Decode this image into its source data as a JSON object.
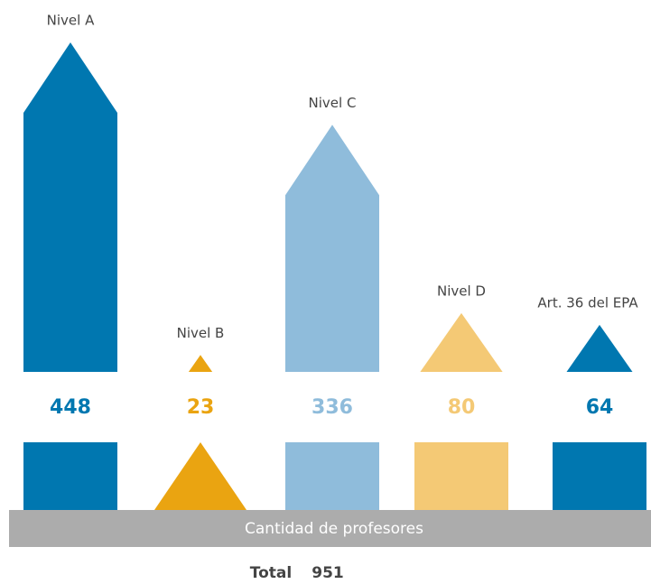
{
  "chart_data": {
    "type": "bar",
    "categories": [
      "Nivel A",
      "Nivel B",
      "Nivel C",
      "Nivel D",
      "Art. 36 del EPA"
    ],
    "values": [
      448,
      23,
      336,
      80,
      64
    ],
    "colors": [
      "#0077b0",
      "#eaa411",
      "#8fbcdb",
      "#f4c975",
      "#0077b0"
    ],
    "xlabel": "Cantidad de profesores",
    "total_label": "Total",
    "total": 951
  }
}
